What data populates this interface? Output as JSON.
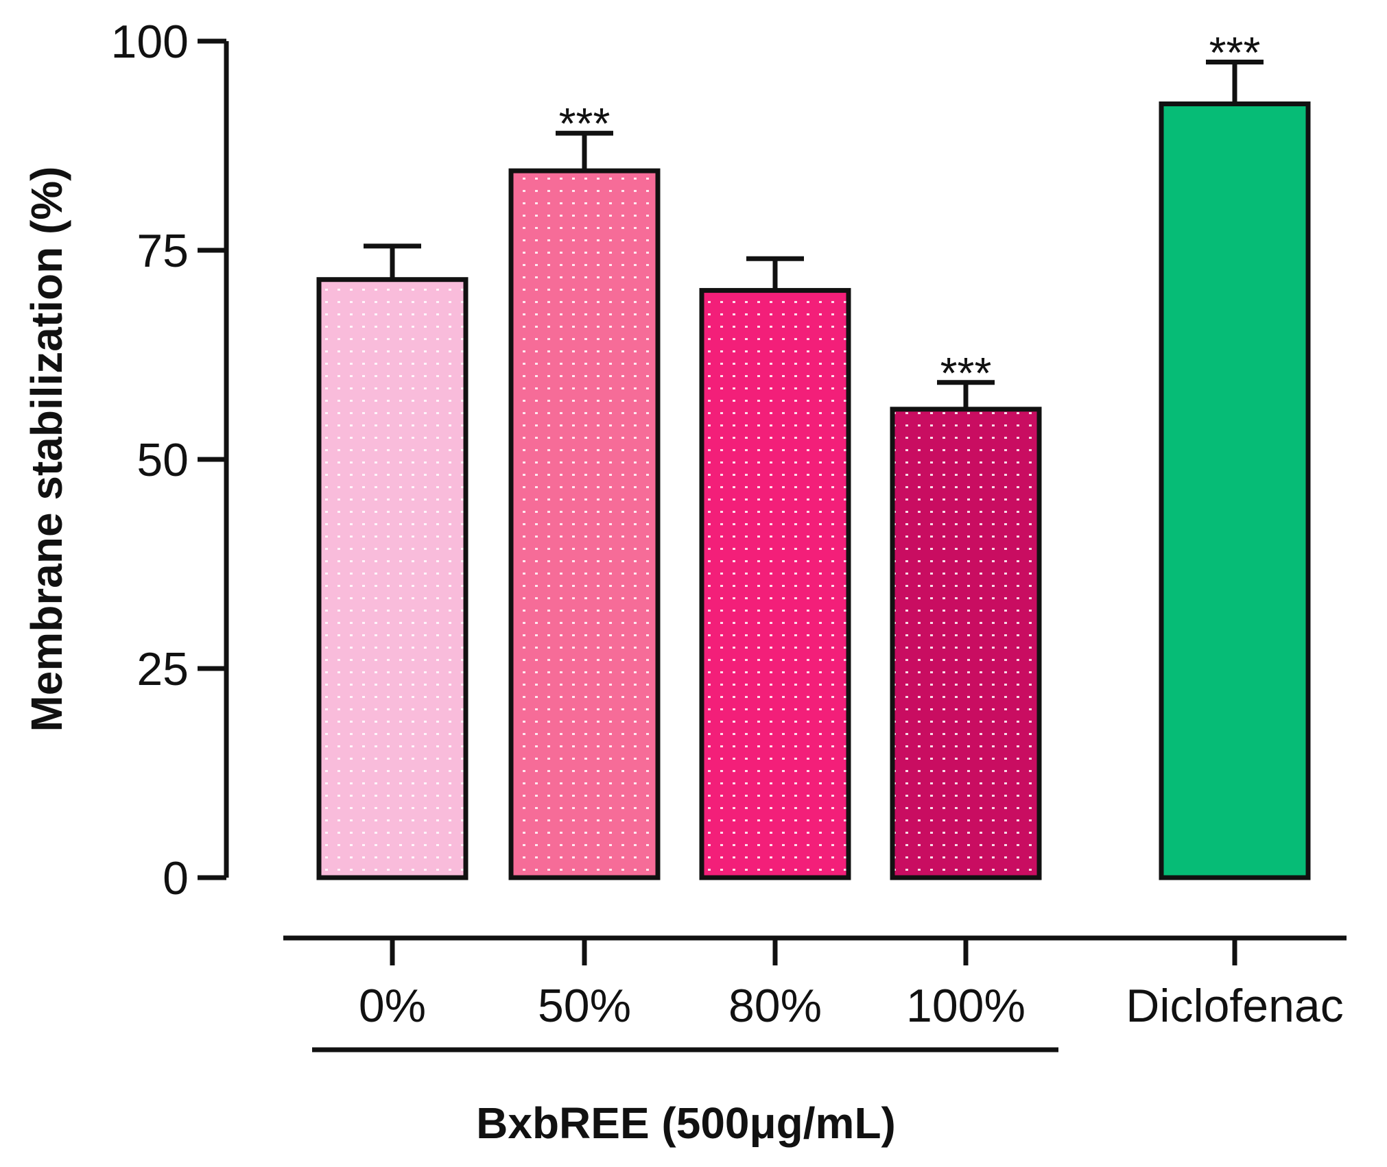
{
  "chart_data": {
    "type": "bar",
    "title": "",
    "ylabel": "Membrane stabilization (%)",
    "xlabel": "BxbREE (500μg/mL)",
    "group_label": "BxbREE (500μg/mL)",
    "ylim": [
      0,
      100
    ],
    "yticks": [
      0,
      25,
      50,
      75,
      100
    ],
    "ytick_labels": [
      "0",
      "25",
      "50",
      "75",
      "100"
    ],
    "categories": [
      "0%",
      "50%",
      "80%",
      "100%",
      "Diclofenac"
    ],
    "values": [
      71.5,
      84.5,
      70.2,
      56.0,
      92.5
    ],
    "errors": [
      4.0,
      4.5,
      3.8,
      3.2,
      5.0
    ],
    "significance": [
      "",
      "***",
      "",
      "***",
      "***"
    ],
    "grouped_categories": [
      0,
      1,
      2,
      3
    ],
    "colors": [
      "#F9BCDB",
      "#F66C98",
      "#F31F79",
      "#C90D61",
      "#06BC76"
    ],
    "patterned": [
      true,
      true,
      true,
      true,
      false
    ],
    "grid": false
  }
}
